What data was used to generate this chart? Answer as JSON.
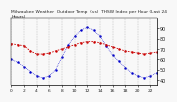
{
  "title": "Milwaukee Weather  Outdoor Temp  (vs)  THSW Index per Hour (Last 24 Hours)",
  "bg_color": "#f8f8f8",
  "hours": [
    0,
    1,
    2,
    3,
    4,
    5,
    6,
    7,
    8,
    9,
    10,
    11,
    12,
    13,
    14,
    15,
    16,
    17,
    18,
    19,
    20,
    21,
    22,
    23
  ],
  "temp_values": [
    75,
    74,
    73,
    68,
    65,
    65,
    66,
    68,
    70,
    72,
    74,
    76,
    77,
    77,
    76,
    74,
    72,
    70,
    68,
    67,
    66,
    65,
    66,
    67
  ],
  "thsw_values": [
    60,
    57,
    53,
    48,
    44,
    42,
    44,
    50,
    62,
    74,
    82,
    88,
    91,
    88,
    82,
    73,
    64,
    58,
    52,
    47,
    44,
    42,
    44,
    47
  ],
  "temp_color": "#cc0000",
  "thsw_color": "#0000cc",
  "ylim_min": 35,
  "ylim_max": 100,
  "ytick_values": [
    40,
    50,
    60,
    70,
    80,
    90
  ],
  "ytick_labels": [
    "40",
    "50",
    "60",
    "70",
    "80",
    "90"
  ],
  "ylabel_fontsize": 3.5,
  "title_fontsize": 3.2,
  "xlabel_fontsize": 3.2,
  "grid_hours": [
    0,
    2,
    4,
    6,
    8,
    10,
    12,
    14,
    16,
    18,
    20,
    22,
    24
  ]
}
